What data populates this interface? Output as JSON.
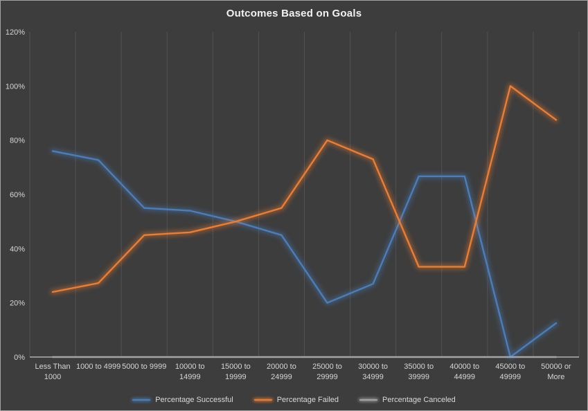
{
  "chart": {
    "bg_color": "#3d3d3d",
    "grid_color": "#525252",
    "axis_color": "#c9c9c9",
    "text_color": "#d6d6d6",
    "title_color": "#f2f2f2",
    "y_ticks": [
      "0%",
      "20%",
      "40%",
      "60%",
      "80%",
      "100%",
      "120%"
    ]
  },
  "chart_data": {
    "type": "line",
    "title": "Outcomes Based on Goals",
    "categories": [
      "Less Than 1000",
      "1000 to 4999",
      "5000 to 9999",
      "10000 to 14999",
      "15000 to 19999",
      "20000 to 24999",
      "25000 to 29999",
      "30000 to 34999",
      "35000 to 39999",
      "40000 to 44999",
      "45000 to 49999",
      "50000 or More"
    ],
    "series": [
      {
        "name": "Percentage Successful",
        "color": "#4a7ebb",
        "values": [
          76,
          72.7,
          55,
          54,
          50,
          45,
          20,
          27,
          66.7,
          66.7,
          0,
          12.5
        ]
      },
      {
        "name": "Percentage Failed",
        "color": "#ed7d31",
        "values": [
          24,
          27.3,
          45,
          46,
          50,
          55,
          80,
          73,
          33.3,
          33.3,
          100,
          87.5
        ]
      },
      {
        "name": "Percentage Canceled",
        "color": "#a5a5a5",
        "values": [
          0,
          0,
          0,
          0,
          0,
          0,
          0,
          0,
          0,
          0,
          0,
          0
        ]
      }
    ],
    "xlabel": "",
    "ylabel": "",
    "ylim": [
      0,
      120
    ],
    "y_tick_step": 20,
    "grid": "vertical",
    "legend_position": "bottom"
  }
}
